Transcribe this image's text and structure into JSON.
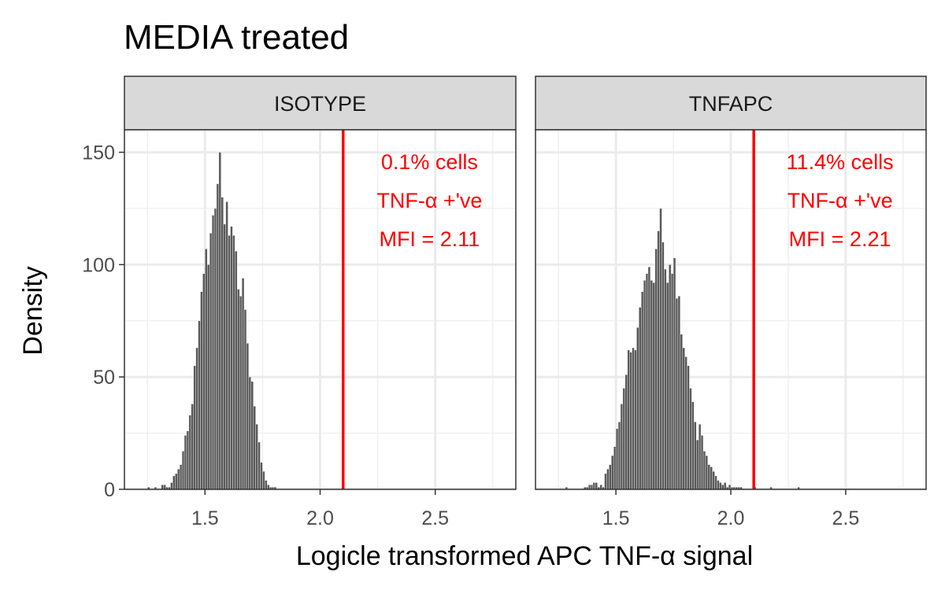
{
  "chart_data": {
    "type": "bar",
    "title": "MEDIA treated",
    "xlabel": "Logicle transformed APC TNF-α signal",
    "ylabel": "Density",
    "xlim": [
      1.15,
      2.85
    ],
    "ylim": [
      0,
      160
    ],
    "x_ticks": [
      "1.5",
      "2.0",
      "2.5"
    ],
    "y_ticks": [
      "0",
      "50",
      "100",
      "150"
    ],
    "threshold_x": 2.1,
    "threshold_color": "#ff0000",
    "bar_color": "#595959",
    "panel_border_color": "#333333",
    "strip_fill": "#d9d9d9",
    "grid": true,
    "panels": [
      {
        "label": "ISOTYPE",
        "annotation": [
          "0.1% cells",
          "TNF-α +'ve",
          "MFI = 2.11"
        ],
        "bin_start": 1.25,
        "bin_width": 0.01,
        "values": [
          1,
          0,
          0,
          1,
          0,
          0,
          2,
          2,
          1,
          1,
          3,
          6,
          7,
          9,
          11,
          17,
          24,
          26,
          33,
          38,
          55,
          63,
          75,
          88,
          96,
          107,
          100,
          114,
          122,
          125,
          136,
          150,
          130,
          118,
          128,
          113,
          117,
          113,
          106,
          89,
          86,
          94,
          80,
          65,
          50,
          48,
          37,
          29,
          21,
          12,
          8,
          4,
          2,
          1,
          1,
          1,
          0,
          0
        ]
      },
      {
        "label": "TNFAPC",
        "annotation": [
          "11.4% cells",
          "TNF-α +'ve",
          "MFI = 2.21"
        ],
        "bin_start": 1.28,
        "bin_width": 0.01,
        "values": [
          1,
          0,
          0,
          0,
          0,
          0,
          0,
          0,
          1,
          1,
          2,
          2,
          3,
          3,
          1,
          2,
          1,
          7,
          9,
          11,
          15,
          19,
          27,
          30,
          38,
          45,
          51,
          62,
          61,
          63,
          62,
          72,
          81,
          88,
          93,
          96,
          99,
          93,
          92,
          107,
          115,
          125,
          110,
          98,
          92,
          100,
          96,
          103,
          85,
          86,
          69,
          63,
          59,
          55,
          45,
          39,
          30,
          22,
          29,
          24,
          17,
          15,
          11,
          10,
          8,
          6,
          4,
          3,
          2,
          3,
          1,
          2,
          1,
          1,
          1,
          1,
          1,
          0,
          0,
          0,
          0,
          0,
          1,
          0,
          0,
          0,
          0,
          0,
          0,
          1,
          0,
          0,
          0,
          0,
          0,
          0,
          0,
          0,
          0,
          0,
          0,
          1
        ]
      }
    ]
  }
}
